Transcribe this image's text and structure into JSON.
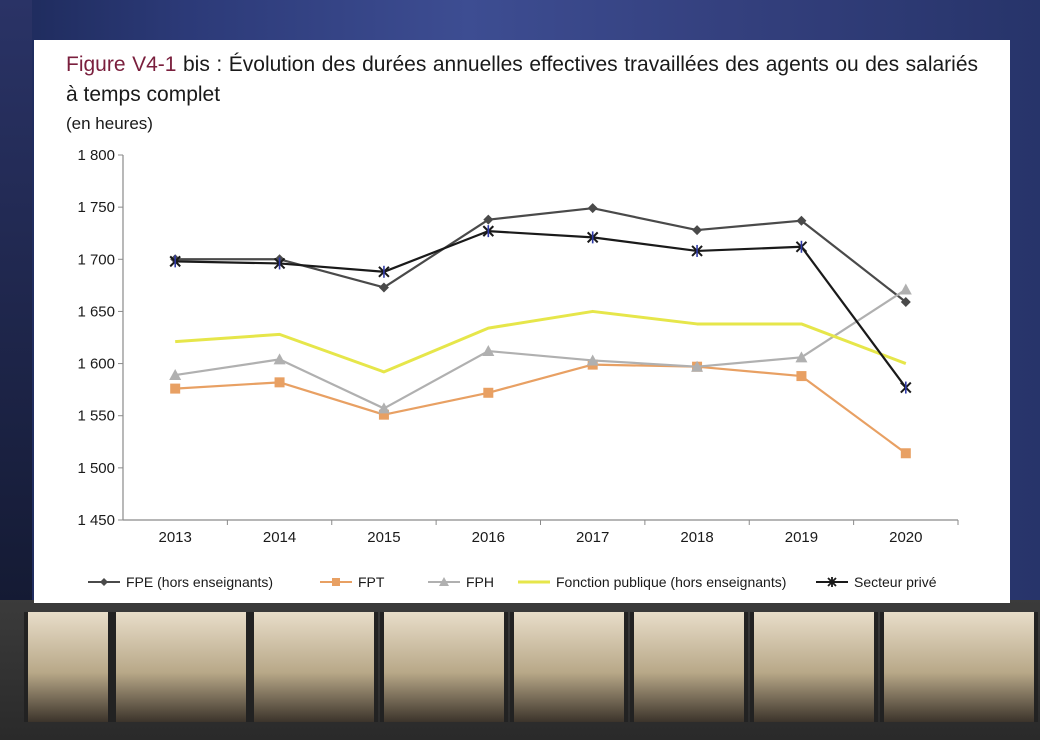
{
  "title_prefix": "Figure V4-1",
  "title_rest": " bis : Évolution des durées annuelles effectives travaillées des agents ou des salariés à temps complet",
  "unit_label": "(en heures)",
  "colors": {
    "FPE": "#4a4a4a",
    "FPT": "#e8a063",
    "FPH": "#b0b0b0",
    "FP": "#e6e64a",
    "PRIVE": "#1a1a1a",
    "PRIVE_marker_accent": "#2f3aa8"
  },
  "chart_data": {
    "type": "line",
    "title": "Figure V4-1 bis : Évolution des durées annuelles effectives travaillées des agents ou des salariés à temps complet",
    "ylabel": "(en heures)",
    "xlabel": "",
    "categories": [
      "2013",
      "2014",
      "2015",
      "2016",
      "2017",
      "2018",
      "2019",
      "2020"
    ],
    "ylim": [
      1450,
      1800
    ],
    "yticks": [
      1450,
      1500,
      1550,
      1600,
      1650,
      1700,
      1750,
      1800
    ],
    "ytick_labels": [
      "1 450",
      "1 500",
      "1 550",
      "1 600",
      "1 650",
      "1 700",
      "1 750",
      "1 800"
    ],
    "grid": false,
    "legend_position": "bottom",
    "series": [
      {
        "key": "FPE",
        "name": "FPE (hors enseignants)",
        "marker": "diamond",
        "values": [
          1700,
          1700,
          1673,
          1738,
          1749,
          1728,
          1737,
          1659
        ]
      },
      {
        "key": "FPT",
        "name": "FPT",
        "marker": "square",
        "values": [
          1576,
          1582,
          1551,
          1572,
          1599,
          1597,
          1588,
          1514
        ]
      },
      {
        "key": "FPH",
        "name": "FPH",
        "marker": "triangle",
        "values": [
          1589,
          1604,
          1557,
          1612,
          1603,
          1597,
          1606,
          1671
        ]
      },
      {
        "key": "FP",
        "name": "Fonction publique (hors enseignants)",
        "marker": "none",
        "values": [
          1621,
          1628,
          1592,
          1634,
          1650,
          1638,
          1638,
          1600
        ]
      },
      {
        "key": "PRIVE",
        "name": "Secteur privé",
        "marker": "star",
        "values": [
          1698,
          1696,
          1688,
          1727,
          1721,
          1708,
          1712,
          1577
        ]
      }
    ]
  }
}
